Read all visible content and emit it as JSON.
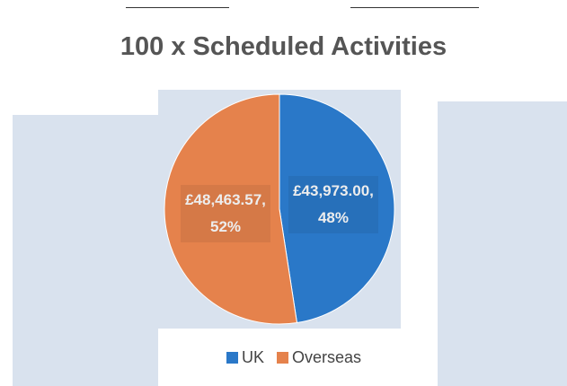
{
  "chart_data": {
    "type": "pie",
    "title": "100 x Scheduled Activities",
    "categories": [
      "UK",
      "Overseas"
    ],
    "values": [
      43973.0,
      48463.57
    ],
    "value_labels": [
      "£43,973.00, 48%",
      "£48,463.57, 52%"
    ],
    "colors": [
      "#2a78c8",
      "#e5824c"
    ]
  }
}
